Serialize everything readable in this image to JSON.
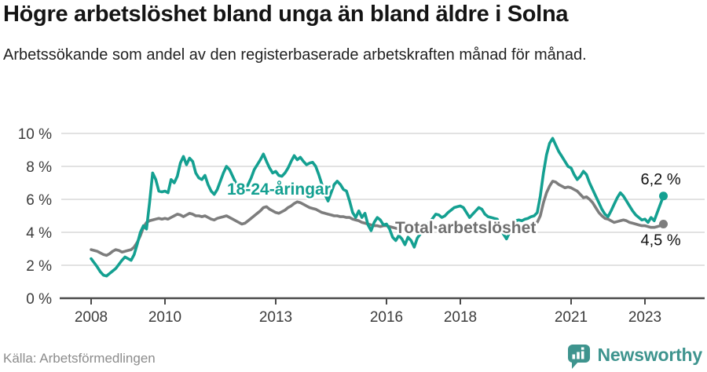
{
  "header": {
    "title": "Högre arbetslöshet bland unga än bland äldre i Solna",
    "subtitle": "Arbetssökande som andel av den registerbaserade arbetskraften månad för månad."
  },
  "chart_data": {
    "type": "line",
    "unit": "%",
    "x_start": 2008,
    "x_step": "1 month",
    "x_end_approx": "2023-07",
    "ylim": [
      0,
      10
    ],
    "grid": true,
    "legend_position": "inline-labels",
    "y_ticks": [
      {
        "value": 0,
        "label": "0 %"
      },
      {
        "value": 2,
        "label": "2 %"
      },
      {
        "value": 4,
        "label": "4 %"
      },
      {
        "value": 6,
        "label": "6 %"
      },
      {
        "value": 8,
        "label": "8 %"
      },
      {
        "value": 10,
        "label": "10 %"
      }
    ],
    "x_ticks": [
      {
        "value": 2008,
        "label": "2008"
      },
      {
        "value": 2010,
        "label": "2010"
      },
      {
        "value": 2013,
        "label": "2013"
      },
      {
        "value": 2016,
        "label": "2016"
      },
      {
        "value": 2018,
        "label": "2018"
      },
      {
        "value": 2021,
        "label": "2021"
      },
      {
        "value": 2023,
        "label": "2023"
      }
    ],
    "style": {
      "grid_color": "#d9d9d9",
      "axis_color": "#4a4a4a",
      "tick_label_color": "#3b3b3b",
      "end_label_color": "#111111"
    },
    "series": [
      {
        "id": "youth",
        "name": "18-24-åringar",
        "color": "#14a091",
        "end_label": "6,2 %",
        "end_value": 6.2,
        "values": [
          2.4,
          2.15,
          1.9,
          1.6,
          1.4,
          1.35,
          1.5,
          1.65,
          1.8,
          2.05,
          2.3,
          2.5,
          2.4,
          2.3,
          2.65,
          3.3,
          4.0,
          4.4,
          4.2,
          5.8,
          7.6,
          7.2,
          6.5,
          6.45,
          6.5,
          6.4,
          7.2,
          7.0,
          7.4,
          8.2,
          8.6,
          8.1,
          8.5,
          8.3,
          7.6,
          7.3,
          7.2,
          7.45,
          6.9,
          6.5,
          6.3,
          6.6,
          7.1,
          7.6,
          8.0,
          7.8,
          7.4,
          7.0,
          6.6,
          6.3,
          6.5,
          6.9,
          7.3,
          7.8,
          8.1,
          8.4,
          8.75,
          8.3,
          7.9,
          7.6,
          7.7,
          7.45,
          7.4,
          7.6,
          7.9,
          8.3,
          8.65,
          8.4,
          8.55,
          8.3,
          8.1,
          8.2,
          8.25,
          8.0,
          7.5,
          6.9,
          6.3,
          5.9,
          6.4,
          6.9,
          7.1,
          6.9,
          6.6,
          6.5,
          5.9,
          5.2,
          4.9,
          5.3,
          4.9,
          5.15,
          4.45,
          4.1,
          4.6,
          4.9,
          4.75,
          4.45,
          4.5,
          4.2,
          3.7,
          3.5,
          3.8,
          3.6,
          3.25,
          3.7,
          3.5,
          3.1,
          3.65,
          3.9,
          4.1,
          4.3,
          4.6,
          4.85,
          5.1,
          5.05,
          4.9,
          5.0,
          5.2,
          5.35,
          5.5,
          5.55,
          5.6,
          5.5,
          5.2,
          4.9,
          5.1,
          5.3,
          5.5,
          5.4,
          5.1,
          4.95,
          4.9,
          4.85,
          4.8,
          4.4,
          3.9,
          3.6,
          4.0,
          4.5,
          4.7,
          4.75,
          4.7,
          4.8,
          4.85,
          4.95,
          5.0,
          5.2,
          6.2,
          7.6,
          8.7,
          9.4,
          9.7,
          9.3,
          8.9,
          8.6,
          8.3,
          8.0,
          7.9,
          7.5,
          7.2,
          7.4,
          7.7,
          7.5,
          7.0,
          6.6,
          6.2,
          5.8,
          5.4,
          5.1,
          4.95,
          5.3,
          5.7,
          6.1,
          6.4,
          6.2,
          5.9,
          5.6,
          5.3,
          5.05,
          4.9,
          4.75,
          4.8,
          4.6,
          4.9,
          4.7,
          5.2,
          5.7,
          6.2
        ]
      },
      {
        "id": "total",
        "name": "Total arbetslöshet",
        "color": "#7d7d7d",
        "label_color": "#6f6f6f",
        "end_label": "4,5 %",
        "end_value": 4.5,
        "values": [
          2.95,
          2.9,
          2.85,
          2.75,
          2.65,
          2.6,
          2.7,
          2.85,
          2.95,
          2.9,
          2.8,
          2.85,
          2.9,
          2.95,
          3.1,
          3.4,
          3.8,
          4.3,
          4.6,
          4.7,
          4.75,
          4.8,
          4.85,
          4.8,
          4.85,
          4.8,
          4.9,
          5.0,
          5.1,
          5.05,
          4.95,
          5.05,
          5.15,
          5.1,
          5.0,
          5.0,
          4.95,
          5.0,
          4.9,
          4.8,
          4.75,
          4.85,
          4.9,
          4.95,
          5.0,
          4.9,
          4.8,
          4.7,
          4.6,
          4.5,
          4.55,
          4.7,
          4.85,
          5.0,
          5.15,
          5.3,
          5.5,
          5.55,
          5.4,
          5.3,
          5.2,
          5.15,
          5.25,
          5.35,
          5.5,
          5.6,
          5.75,
          5.85,
          5.8,
          5.7,
          5.6,
          5.5,
          5.45,
          5.4,
          5.3,
          5.2,
          5.15,
          5.1,
          5.05,
          5.0,
          5.0,
          4.95,
          4.95,
          4.9,
          4.9,
          4.8,
          4.75,
          4.7,
          4.6,
          4.55,
          4.5,
          4.45,
          4.4,
          4.4,
          4.35,
          4.4,
          4.4,
          4.35,
          4.3,
          4.25,
          4.2,
          4.15,
          4.2,
          4.25,
          4.2,
          4.15,
          4.1,
          4.15,
          4.2,
          4.25,
          4.3,
          4.35,
          4.3,
          4.25,
          4.2,
          4.25,
          4.3,
          4.35,
          4.3,
          4.25,
          4.3,
          4.35,
          4.3,
          4.25,
          4.2,
          4.15,
          4.1,
          4.15,
          4.2,
          4.15,
          4.1,
          4.1,
          4.1,
          4.05,
          4.0,
          4.05,
          4.1,
          4.15,
          4.2,
          4.25,
          4.3,
          4.3,
          4.35,
          4.4,
          4.5,
          4.6,
          5.0,
          5.8,
          6.4,
          6.8,
          7.1,
          7.05,
          6.9,
          6.8,
          6.7,
          6.75,
          6.7,
          6.6,
          6.5,
          6.3,
          6.1,
          6.15,
          6.0,
          5.8,
          5.5,
          5.2,
          5.0,
          4.85,
          4.8,
          4.7,
          4.6,
          4.65,
          4.7,
          4.75,
          4.7,
          4.6,
          4.55,
          4.5,
          4.45,
          4.4,
          4.4,
          4.35,
          4.3,
          4.3,
          4.35,
          4.4,
          4.5
        ]
      }
    ]
  },
  "footer": {
    "source": "Källa: Arbetsförmedlingen",
    "brand": "Newsworthy"
  }
}
